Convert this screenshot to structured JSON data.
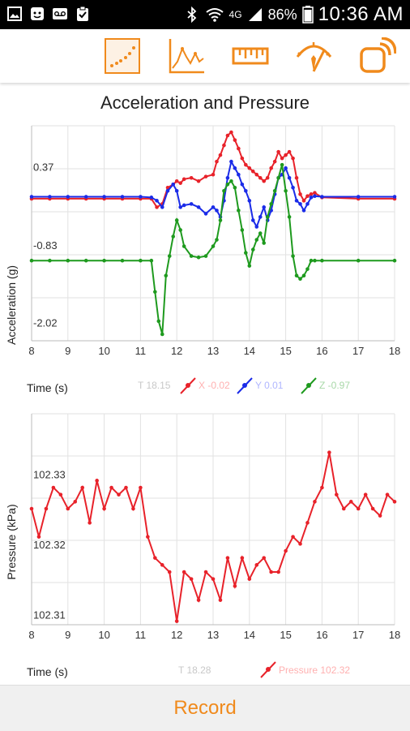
{
  "status_bar": {
    "network": "4G",
    "battery": "86%",
    "time": "10:36 AM"
  },
  "toolbar": {
    "icons": [
      "scatter-plot-icon",
      "line-graph-icon",
      "ruler-icon",
      "meter-icon",
      "connect-icon"
    ],
    "accent_color": "#f08a1c"
  },
  "accel_chart": {
    "title": "Acceleration and Pressure",
    "ylabel": "Acceleration (g)",
    "xlabel": "Time (s)",
    "y_ticks": [
      "0.37",
      "-0.83",
      "-2.02"
    ],
    "x_ticks": [
      "8",
      "9",
      "10",
      "11",
      "12",
      "13",
      "14",
      "15",
      "16",
      "17",
      "18"
    ],
    "legend_t": "T 18.15",
    "legend_x": "X -0.02",
    "legend_y": "Y 0.01",
    "legend_z": "Z -0.97"
  },
  "pressure_chart": {
    "ylabel": "Pressure (kPa)",
    "xlabel": "Time (s)",
    "y_ticks": [
      "102.33",
      "102.32",
      "102.31"
    ],
    "x_ticks": [
      "8",
      "9",
      "10",
      "11",
      "12",
      "13",
      "14",
      "15",
      "16",
      "17",
      "18"
    ],
    "legend_t": "T 18.28",
    "legend_p": "Pressure 102.32"
  },
  "chart_data": [
    {
      "type": "line",
      "title": "Acceleration and Pressure",
      "xlabel": "Time (s)",
      "ylabel": "Acceleration (g)",
      "xlim": [
        8,
        18
      ],
      "ylim": [
        -2.2,
        1.1
      ],
      "series": [
        {
          "name": "X",
          "color": "#e8222a",
          "x": [
            8,
            8.5,
            9,
            9.5,
            10,
            10.5,
            11,
            11.3,
            11.45,
            11.6,
            11.75,
            11.9,
            12.0,
            12.1,
            12.2,
            12.4,
            12.6,
            12.8,
            13.0,
            13.1,
            13.2,
            13.3,
            13.4,
            13.5,
            13.6,
            13.7,
            13.8,
            13.9,
            14.0,
            14.1,
            14.2,
            14.3,
            14.4,
            14.5,
            14.6,
            14.7,
            14.8,
            14.9,
            15.0,
            15.1,
            15.2,
            15.3,
            15.4,
            15.5,
            15.6,
            15.7,
            15.8,
            16,
            17,
            18
          ],
          "y": [
            -0.02,
            -0.02,
            -0.02,
            -0.02,
            -0.02,
            -0.02,
            -0.02,
            -0.02,
            -0.15,
            -0.1,
            0.15,
            0.2,
            0.25,
            0.22,
            0.28,
            0.3,
            0.25,
            0.32,
            0.35,
            0.55,
            0.65,
            0.8,
            0.95,
            1.0,
            0.88,
            0.75,
            0.6,
            0.5,
            0.45,
            0.4,
            0.35,
            0.3,
            0.25,
            0.3,
            0.45,
            0.55,
            0.7,
            0.6,
            0.65,
            0.7,
            0.6,
            0.3,
            0.05,
            -0.05,
            0.02,
            0.05,
            0.07,
            0.0,
            -0.02,
            -0.02
          ]
        },
        {
          "name": "Y",
          "color": "#1a2be8",
          "x": [
            8,
            8.5,
            9,
            9.5,
            10,
            10.5,
            11,
            11.3,
            11.45,
            11.6,
            11.75,
            11.9,
            12.0,
            12.1,
            12.2,
            12.4,
            12.6,
            12.8,
            13.0,
            13.1,
            13.2,
            13.3,
            13.4,
            13.5,
            13.6,
            13.7,
            13.8,
            13.9,
            14.0,
            14.1,
            14.2,
            14.3,
            14.4,
            14.5,
            14.6,
            14.7,
            14.8,
            14.9,
            15.0,
            15.1,
            15.2,
            15.3,
            15.4,
            15.5,
            15.6,
            15.7,
            15.8,
            16,
            17,
            18
          ],
          "y": [
            0.01,
            0.01,
            0.01,
            0.01,
            0.01,
            0.01,
            0.01,
            0.0,
            -0.05,
            -0.15,
            0.1,
            0.2,
            0.1,
            -0.15,
            -0.12,
            -0.1,
            -0.15,
            -0.25,
            -0.15,
            -0.2,
            -0.3,
            -0.05,
            0.3,
            0.55,
            0.45,
            0.35,
            0.2,
            0.1,
            -0.05,
            -0.35,
            -0.45,
            -0.3,
            -0.15,
            -0.35,
            -0.2,
            0.05,
            0.3,
            0.35,
            0.45,
            0.3,
            0.15,
            -0.05,
            -0.1,
            -0.2,
            -0.1,
            0.0,
            0.02,
            0.01,
            0.01,
            0.01
          ]
        },
        {
          "name": "Z",
          "color": "#1e9a1e",
          "x": [
            8,
            8.5,
            9,
            9.5,
            10,
            10.5,
            11,
            11.3,
            11.4,
            11.5,
            11.6,
            11.7,
            11.8,
            11.9,
            12.0,
            12.1,
            12.2,
            12.4,
            12.6,
            12.8,
            13.0,
            13.1,
            13.2,
            13.3,
            13.4,
            13.5,
            13.6,
            13.7,
            13.8,
            13.9,
            14.0,
            14.1,
            14.2,
            14.3,
            14.4,
            14.5,
            14.6,
            14.7,
            14.8,
            14.9,
            15.0,
            15.1,
            15.2,
            15.3,
            15.4,
            15.5,
            15.6,
            15.7,
            15.8,
            16,
            17,
            18
          ],
          "y": [
            -0.97,
            -0.97,
            -0.97,
            -0.97,
            -0.97,
            -0.97,
            -0.97,
            -0.97,
            -1.45,
            -1.9,
            -2.1,
            -1.2,
            -0.9,
            -0.6,
            -0.35,
            -0.5,
            -0.75,
            -0.9,
            -0.92,
            -0.9,
            -0.75,
            -0.65,
            -0.35,
            0.1,
            0.2,
            0.25,
            0.15,
            -0.2,
            -0.5,
            -0.85,
            -1.05,
            -0.8,
            -0.65,
            -0.55,
            -0.7,
            -0.3,
            -0.1,
            0.1,
            0.3,
            0.5,
            0.1,
            -0.3,
            -0.9,
            -1.2,
            -1.25,
            -1.2,
            -1.1,
            -0.97,
            -0.97,
            -0.97,
            -0.97,
            -0.97
          ]
        }
      ]
    },
    {
      "type": "line",
      "xlabel": "Time (s)",
      "ylabel": "Pressure (kPa)",
      "xlim": [
        8,
        18
      ],
      "ylim": [
        102.3095,
        102.3395
      ],
      "series": [
        {
          "name": "Pressure",
          "color": "#e8222a",
          "x": [
            8,
            8.2,
            8.4,
            8.6,
            8.8,
            9.0,
            9.2,
            9.4,
            9.6,
            9.8,
            10.0,
            10.2,
            10.4,
            10.6,
            10.8,
            11.0,
            11.2,
            11.4,
            11.6,
            11.8,
            12.0,
            12.2,
            12.4,
            12.6,
            12.8,
            13.0,
            13.2,
            13.4,
            13.6,
            13.8,
            14.0,
            14.2,
            14.4,
            14.6,
            14.8,
            15.0,
            15.2,
            15.4,
            15.6,
            15.8,
            16.0,
            16.2,
            16.4,
            16.6,
            16.8,
            17.0,
            17.2,
            17.4,
            17.6,
            17.8,
            18.0
          ],
          "y": [
            102.326,
            102.322,
            102.326,
            102.329,
            102.328,
            102.326,
            102.327,
            102.329,
            102.324,
            102.33,
            102.326,
            102.329,
            102.328,
            102.329,
            102.326,
            102.329,
            102.322,
            102.319,
            102.318,
            102.317,
            102.31,
            102.317,
            102.316,
            102.313,
            102.317,
            102.316,
            102.313,
            102.319,
            102.315,
            102.319,
            102.316,
            102.318,
            102.319,
            102.317,
            102.317,
            102.32,
            102.322,
            102.321,
            102.324,
            102.327,
            102.329,
            102.334,
            102.328,
            102.326,
            102.327,
            102.326,
            102.328,
            102.326,
            102.325,
            102.328,
            102.327
          ]
        }
      ]
    }
  ]
}
